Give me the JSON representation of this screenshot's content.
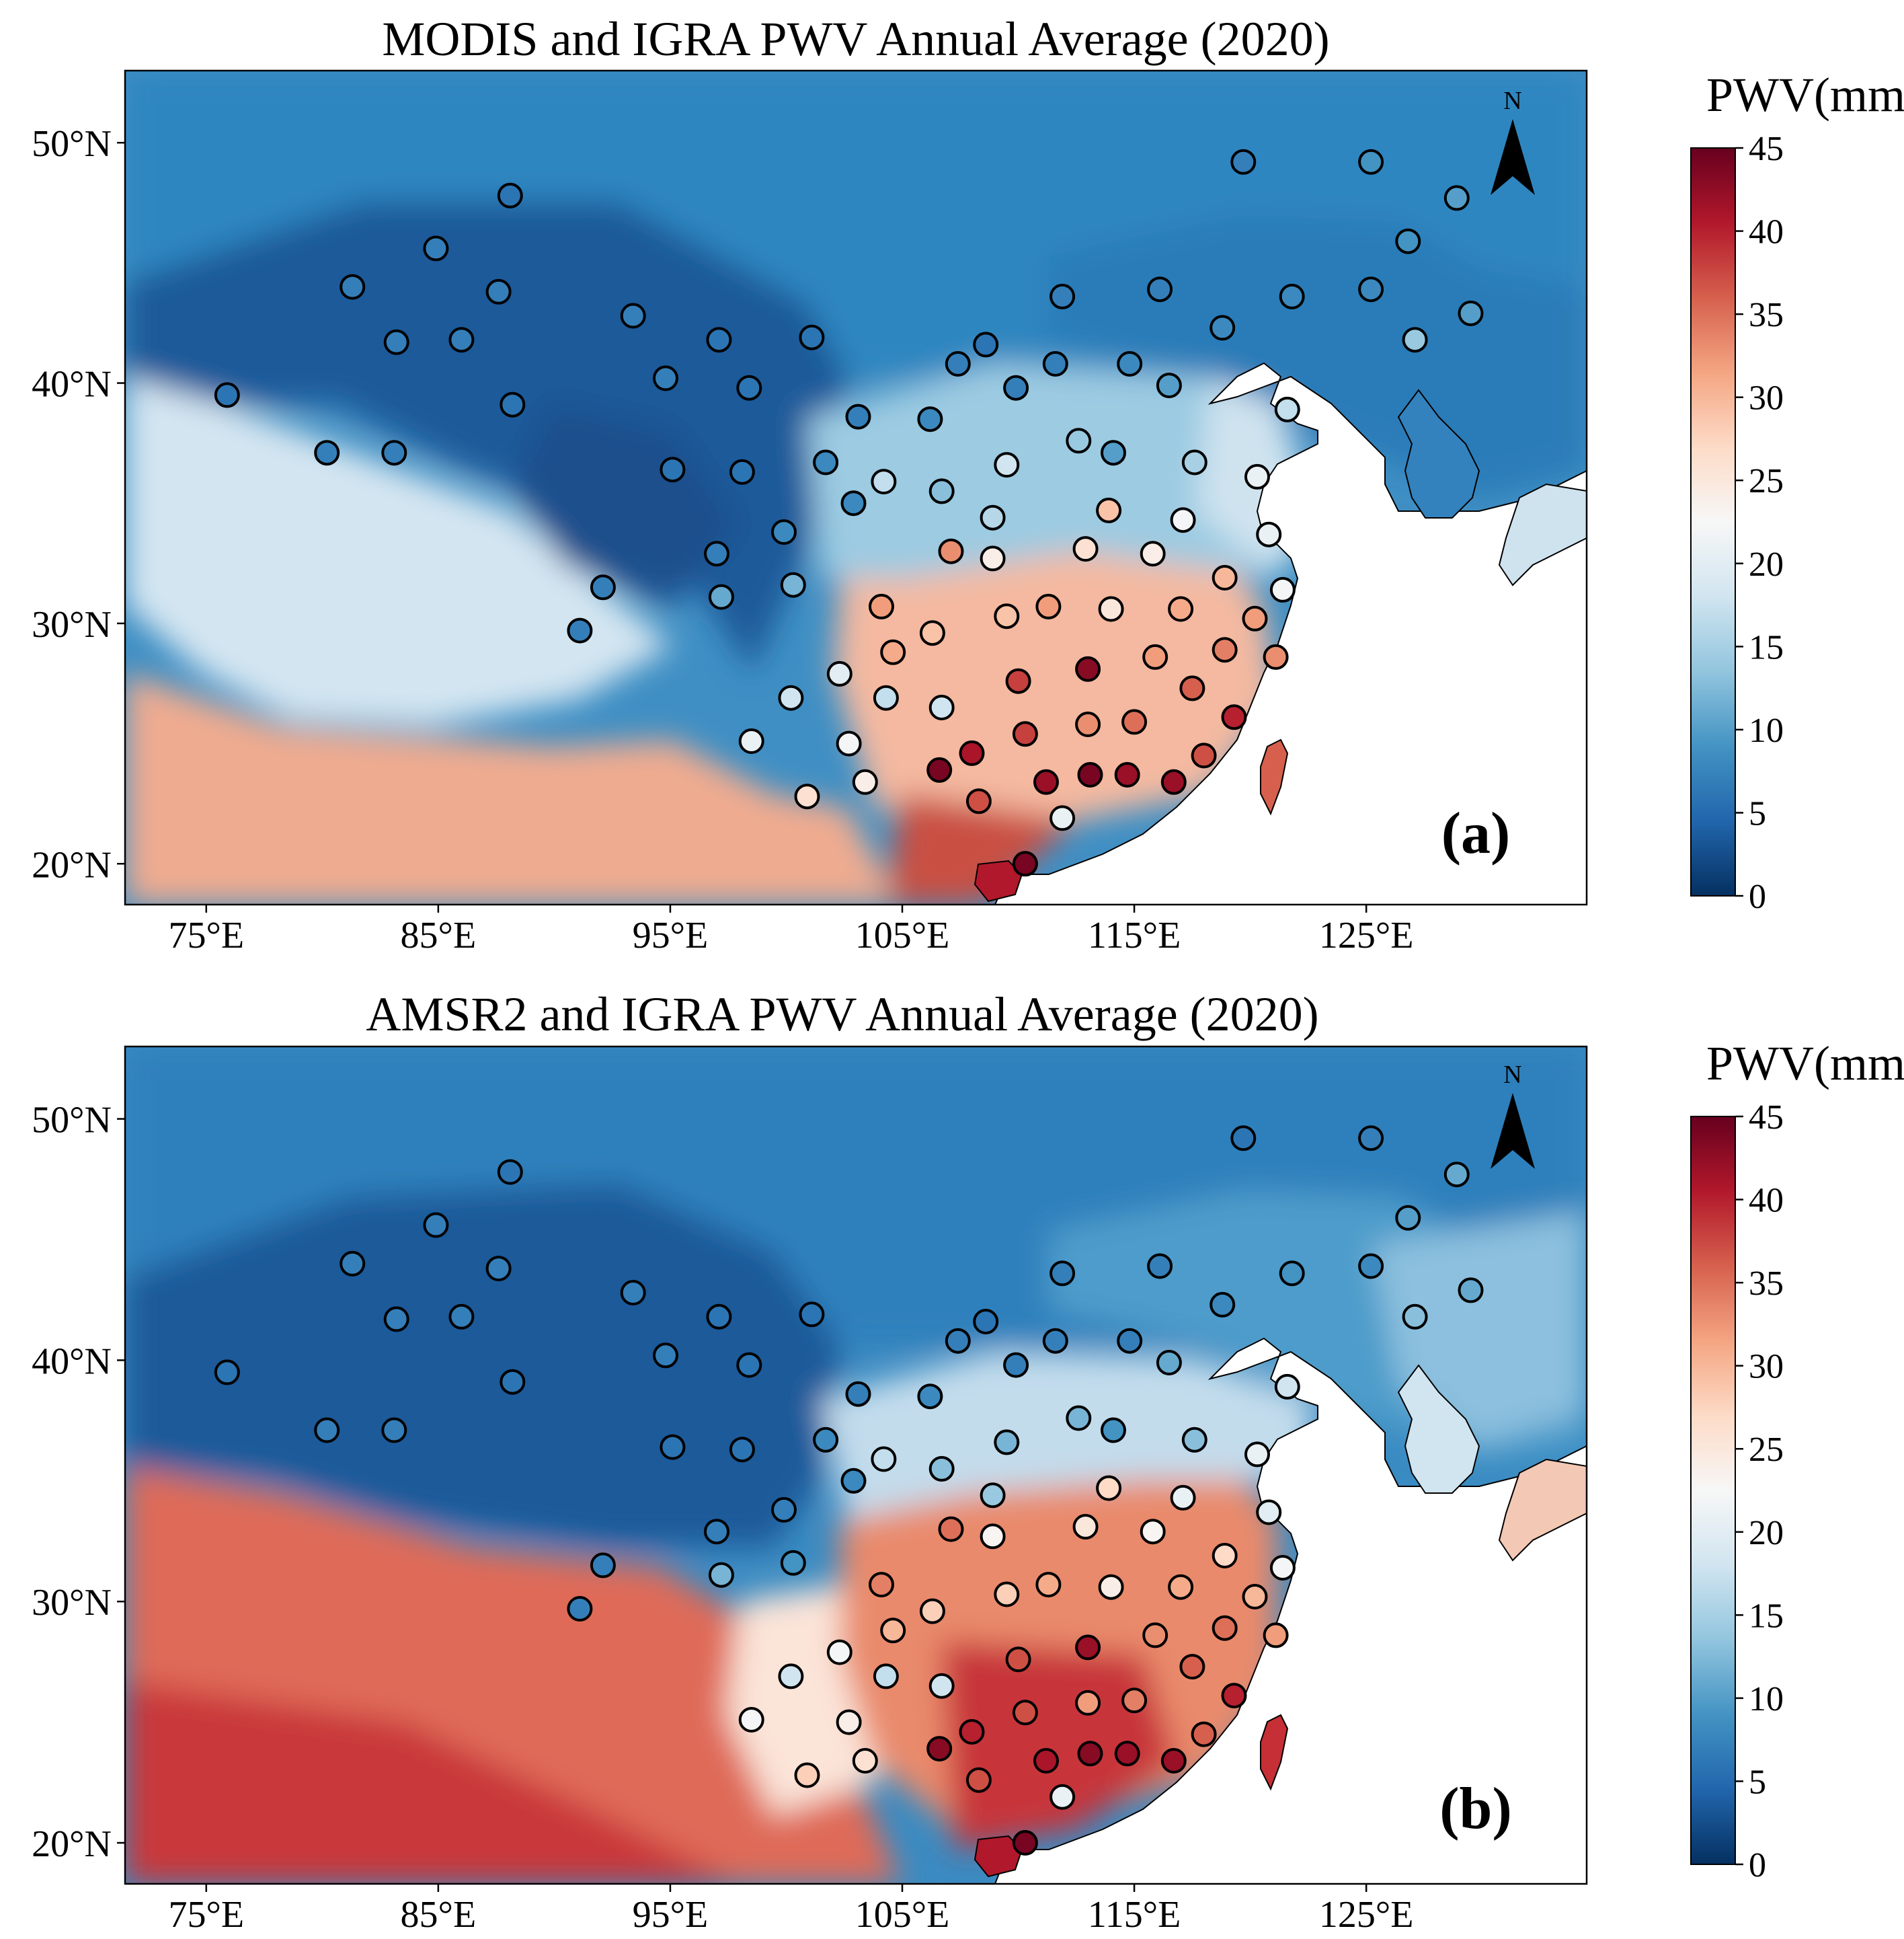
{
  "panels": [
    {
      "id": "a",
      "title": "MODIS and IGRA PWV Annual Average (2020)",
      "panel_label": "(a)",
      "product": "MODIS",
      "colorbar_label": "PWV(mm)"
    },
    {
      "id": "b",
      "title": "AMSR2 and IGRA  PWV Annual Average (2020)",
      "panel_label": "(b)",
      "product": "AMSR2",
      "colorbar_label": "PWV(mm)"
    }
  ],
  "north_arrow_label": "N",
  "axes": {
    "lon_range": [
      71.5,
      134.5
    ],
    "lat_range": [
      18.3,
      53.0
    ],
    "lon_ticks": [
      75,
      85,
      95,
      105,
      115,
      125
    ],
    "lat_ticks": [
      20,
      30,
      40,
      50
    ],
    "lon_tick_labels": [
      "75°E",
      "85°E",
      "95°E",
      "105°E",
      "115°E",
      "125°E"
    ],
    "lat_tick_labels": [
      "20°N",
      "30°N",
      "40°N",
      "50°N"
    ]
  },
  "colorbar": {
    "min": 0,
    "max": 45,
    "ticks": [
      0,
      5,
      10,
      15,
      20,
      25,
      30,
      35,
      40,
      45
    ],
    "tick_labels": [
      "0",
      "5",
      "10",
      "15",
      "20",
      "25",
      "30",
      "35",
      "40",
      "45"
    ],
    "colormap": "RdBu_r",
    "stops": [
      "#053061",
      "#2166ac",
      "#4393c3",
      "#92c5de",
      "#d1e5f0",
      "#f7f7f7",
      "#fddbc7",
      "#f4a582",
      "#d6604d",
      "#b2182b",
      "#67001f"
    ]
  },
  "station_values_mm": [
    [
      75.9,
      39.5,
      6,
      6
    ],
    [
      80.2,
      37.1,
      7,
      7
    ],
    [
      83.1,
      37.1,
      7,
      7
    ],
    [
      81.3,
      44.0,
      7,
      7
    ],
    [
      83.2,
      41.7,
      7,
      7
    ],
    [
      86.0,
      41.8,
      7,
      7
    ],
    [
      84.9,
      45.6,
      7,
      7
    ],
    [
      87.6,
      43.8,
      7,
      7
    ],
    [
      88.1,
      47.8,
      6,
      6
    ],
    [
      88.2,
      39.1,
      6,
      6
    ],
    [
      93.4,
      42.8,
      7,
      7
    ],
    [
      94.8,
      40.2,
      7,
      7
    ],
    [
      95.1,
      36.4,
      6,
      6
    ],
    [
      97.1,
      41.8,
      6,
      6
    ],
    [
      98.4,
      39.8,
      6,
      6
    ],
    [
      98.1,
      36.3,
      6,
      6
    ],
    [
      101.1,
      41.9,
      6,
      6
    ],
    [
      101.7,
      36.7,
      8,
      8
    ],
    [
      103.1,
      38.6,
      7,
      7
    ],
    [
      102.9,
      35.0,
      8,
      8
    ],
    [
      104.2,
      35.9,
      17,
      17
    ],
    [
      106.2,
      38.5,
      8,
      8
    ],
    [
      106.7,
      35.5,
      13,
      13
    ],
    [
      107.4,
      40.8,
      7,
      7
    ],
    [
      108.6,
      41.6,
      6,
      6
    ],
    [
      109.9,
      39.8,
      7,
      7
    ],
    [
      111.6,
      40.8,
      7,
      7
    ],
    [
      111.9,
      43.6,
      7,
      7
    ],
    [
      114.8,
      40.8,
      8,
      7
    ],
    [
      116.1,
      43.9,
      7,
      7
    ],
    [
      116.5,
      39.9,
      10,
      11
    ],
    [
      112.6,
      37.6,
      14,
      12
    ],
    [
      109.5,
      36.6,
      18,
      12
    ],
    [
      108.9,
      34.4,
      16,
      14
    ],
    [
      114.1,
      37.1,
      10,
      9
    ],
    [
      117.6,
      36.7,
      15,
      13
    ],
    [
      120.3,
      36.1,
      21,
      21
    ],
    [
      118.8,
      42.3,
      8,
      8
    ],
    [
      121.8,
      43.6,
      8,
      9
    ],
    [
      125.2,
      43.9,
      8,
      8
    ],
    [
      119.7,
      49.2,
      7,
      6
    ],
    [
      125.2,
      49.2,
      9,
      7
    ],
    [
      126.8,
      45.9,
      9,
      10
    ],
    [
      129.5,
      42.9,
      10,
      11
    ],
    [
      127.1,
      41.8,
      14,
      13
    ],
    [
      128.9,
      47.7,
      10,
      11
    ],
    [
      121.6,
      38.9,
      17,
      18
    ],
    [
      97.0,
      32.9,
      7,
      7
    ],
    [
      97.2,
      31.1,
      11,
      12
    ],
    [
      99.9,
      33.8,
      8,
      7
    ],
    [
      100.3,
      31.6,
      12,
      9
    ],
    [
      92.1,
      31.5,
      7,
      7
    ],
    [
      91.1,
      29.7,
      7,
      7
    ],
    [
      100.2,
      26.9,
      18,
      18
    ],
    [
      98.5,
      25.1,
      21,
      22
    ],
    [
      104.1,
      30.7,
      32,
      34
    ],
    [
      104.6,
      28.8,
      31,
      30
    ],
    [
      106.3,
      29.6,
      29,
      28
    ],
    [
      102.3,
      27.9,
      20,
      22
    ],
    [
      104.3,
      26.9,
      17,
      17
    ],
    [
      106.7,
      26.5,
      18,
      18
    ],
    [
      102.7,
      25.0,
      22,
      24
    ],
    [
      103.4,
      23.4,
      24,
      26
    ],
    [
      100.9,
      22.8,
      26,
      28
    ],
    [
      107.1,
      33.0,
      33,
      35
    ],
    [
      108.9,
      32.7,
      24,
      23
    ],
    [
      109.5,
      30.3,
      29,
      28
    ],
    [
      111.3,
      30.7,
      32,
      31
    ],
    [
      112.9,
      33.1,
      26,
      25
    ],
    [
      113.9,
      34.7,
      29,
      27
    ],
    [
      115.8,
      32.9,
      24,
      23
    ],
    [
      117.1,
      34.3,
      22,
      21
    ],
    [
      118.9,
      31.9,
      30,
      27
    ],
    [
      120.2,
      30.2,
      32,
      30
    ],
    [
      120.8,
      33.7,
      21,
      20
    ],
    [
      121.4,
      31.4,
      22,
      22
    ],
    [
      121.1,
      28.6,
      33,
      32
    ],
    [
      114.0,
      30.6,
      25,
      24
    ],
    [
      117.0,
      30.6,
      31,
      31
    ],
    [
      118.9,
      28.9,
      34,
      35
    ],
    [
      115.9,
      28.6,
      32,
      33
    ],
    [
      113.0,
      28.1,
      43,
      42
    ],
    [
      110.0,
      27.6,
      38,
      37
    ],
    [
      110.3,
      25.4,
      38,
      37
    ],
    [
      113.0,
      25.8,
      33,
      32
    ],
    [
      115.0,
      25.9,
      35,
      34
    ],
    [
      117.5,
      27.3,
      36,
      36
    ],
    [
      119.3,
      26.1,
      40,
      40
    ],
    [
      118.0,
      24.5,
      37,
      36
    ],
    [
      116.7,
      23.4,
      42,
      42
    ],
    [
      114.7,
      23.7,
      42,
      42
    ],
    [
      113.1,
      23.7,
      44,
      43
    ],
    [
      111.2,
      23.4,
      42,
      41
    ],
    [
      108.3,
      22.6,
      37,
      37
    ],
    [
      108.0,
      24.6,
      41,
      40
    ],
    [
      106.6,
      23.9,
      44,
      43
    ],
    [
      110.3,
      20.0,
      44,
      44
    ],
    [
      111.9,
      21.9,
      21,
      21
    ]
  ]
}
